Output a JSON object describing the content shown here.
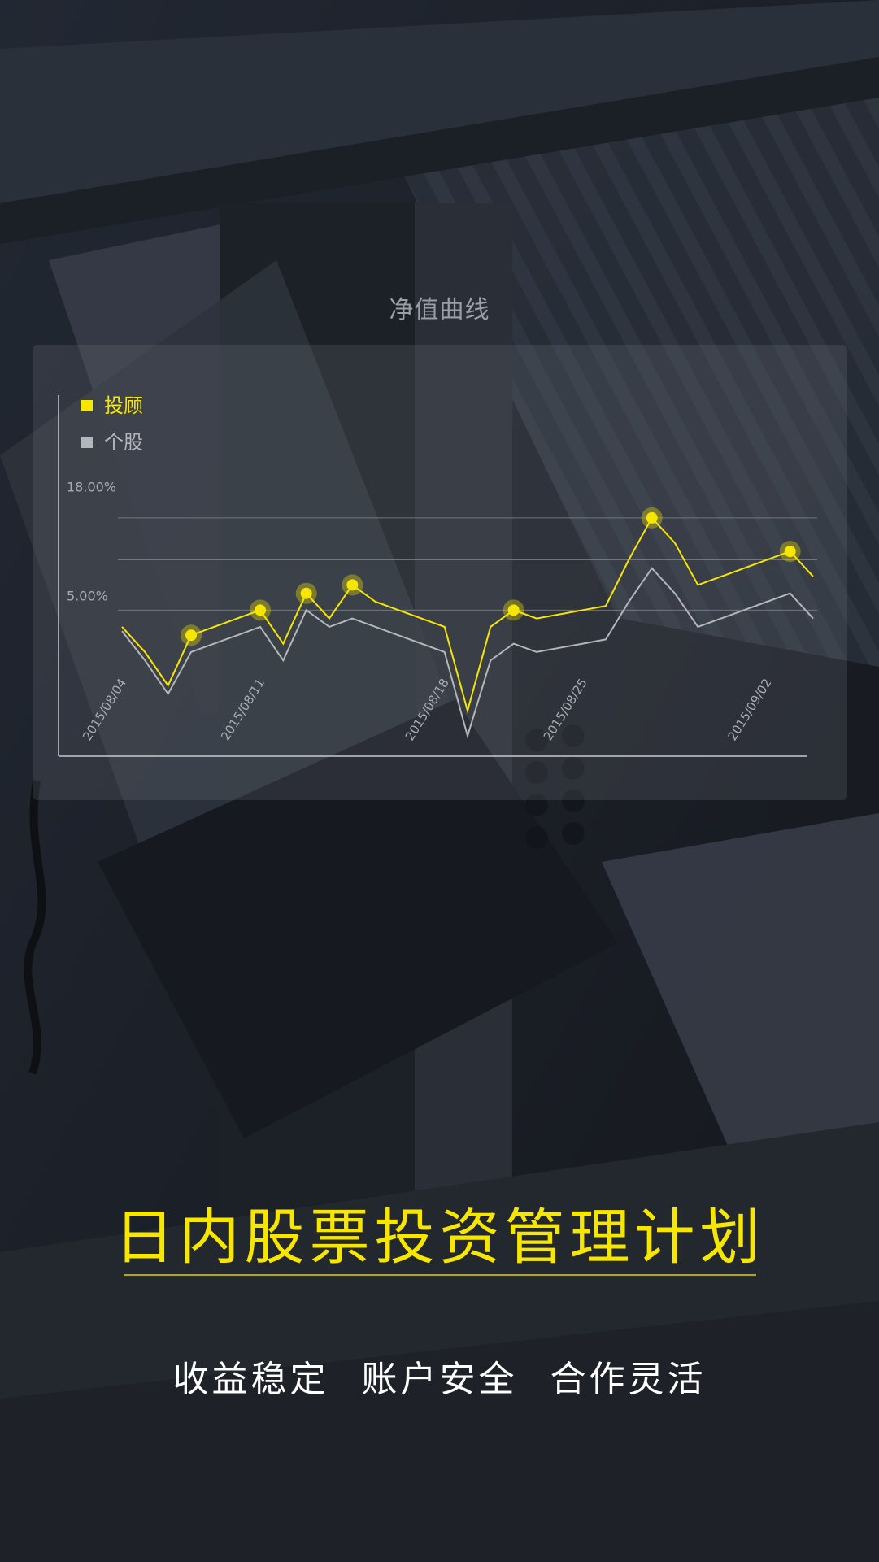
{
  "chart_title": "净值曲线",
  "headline": "日内股票投资管理计划",
  "features": [
    "收益稳定",
    "账户安全",
    "合作灵活"
  ],
  "colors": {
    "accent": "#f7e600",
    "secondary": "#b4b6ba",
    "axis_text": "#a8acb2"
  },
  "chart_data": {
    "type": "line",
    "y_tick_labels": [
      "18.00%",
      "5.00%"
    ],
    "y_ticks": [
      18,
      5
    ],
    "ylim": [
      -10,
      22
    ],
    "x_tick_labels": [
      "2015/08/04",
      "2015/08/11",
      "2015/08/18",
      "2015/08/25",
      "2015/09/02"
    ],
    "x_tick_index": [
      0,
      6,
      14,
      20,
      28
    ],
    "gridlines": [
      16,
      11,
      5
    ],
    "legend_position": "top-left",
    "series": [
      {
        "name": "投顾",
        "values": [
          3,
          0,
          -4,
          2,
          3,
          4,
          5,
          1,
          7,
          4,
          8,
          6,
          5,
          4,
          3,
          -7,
          3,
          5,
          4,
          4.5,
          5,
          5.5,
          11,
          16,
          13,
          8,
          9,
          10,
          11,
          12,
          9
        ],
        "markers": [
          3,
          6,
          8,
          10,
          17,
          23,
          29
        ]
      },
      {
        "name": "个股",
        "values": [
          2.5,
          -1,
          -5,
          0,
          1,
          2,
          3,
          -1,
          5,
          3,
          4,
          3,
          2,
          1,
          0,
          -10,
          -1,
          1,
          0,
          0.5,
          1,
          1.5,
          6,
          10,
          7,
          3,
          4,
          5,
          6,
          7,
          4
        ],
        "markers": []
      }
    ]
  }
}
